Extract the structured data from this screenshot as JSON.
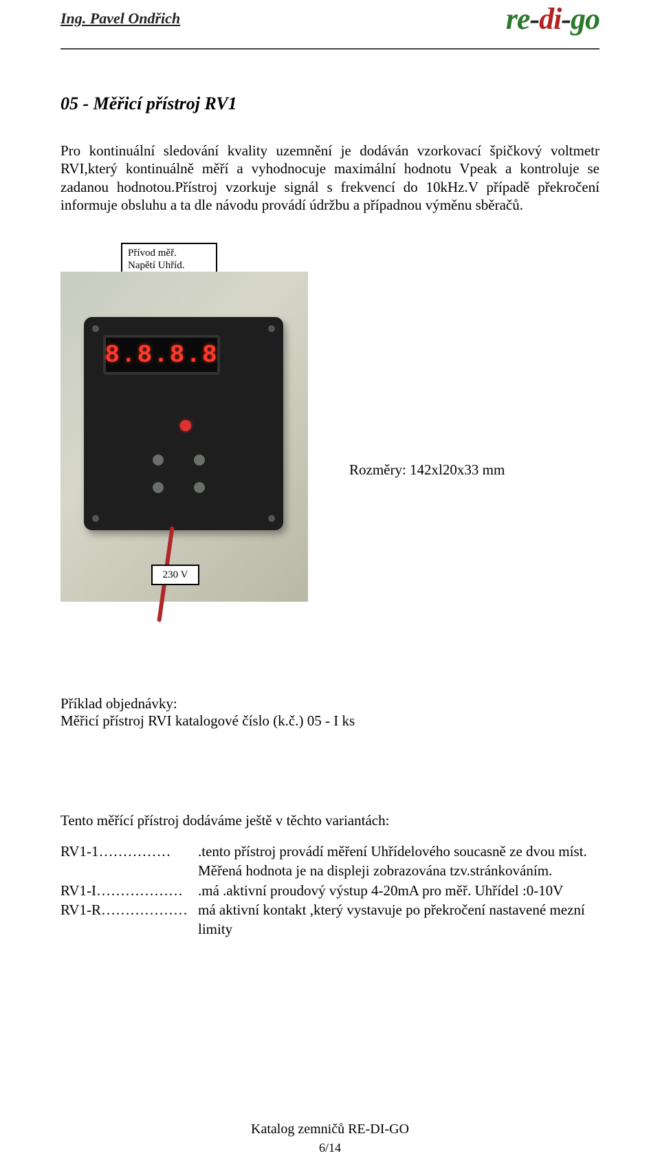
{
  "header": {
    "author": "Ing. Pavel Ondřich",
    "logo_re": "re",
    "logo_dash1": "-",
    "logo_di": "di",
    "logo_dash2": "-",
    "logo_go": "go"
  },
  "title": "05 - Měřicí přístroj RV1",
  "para": "Pro kontinuální sledování kvality uzemnění je dodáván vzorkovací špičkový voltmetr RVI,který kontinuálně měří a vyhodnocuje maximální hodnotu Vpeak a kontroluje se zadanou hodnotou.Přístroj vzorkuje signál s frekvencí do 10kHz.V případě překročení informuje obsluhu a ta dle návodu provádí údržbu a případnou výměnu sběračů.",
  "label_top_l1": "Přívod měř.",
  "label_top_l2": "Napětí Uhříd.",
  "label_bot": "230 V",
  "display_digits": "8.8.8.8",
  "dimensions": "Rozměry: 142xl20x33 mm",
  "order_title": "Příklad objednávky:",
  "order_line": "Měřicí přístroj RVI katalogové číslo (k.č.) 05 - I ks",
  "variants_heading": "Tento měřící přístroj dodáváme ještě v těchto variantách:",
  "variants": [
    {
      "code": "RV1-1……………",
      "desc": ".tento přístroj provádí měření Uhřídelového soucasně ze dvou míst.",
      "cont": "Měřená hodnota je na displeji zobrazována tzv.stránkováním."
    },
    {
      "code": "RV1-I………………",
      "desc": ".má .aktivní proudový výstup 4-20mA pro měř. Uhřídel :0-10V",
      "cont": ""
    },
    {
      "code": "RV1-R………………",
      "desc": "má aktivní kontakt ,který vystavuje po překročení nastavené mezní limity",
      "cont": ""
    }
  ],
  "footer": "Katalog zemničů RE-DI-GO",
  "pagenum": "6/14",
  "colors": {
    "green": "#2b7a2b",
    "red": "#b22222",
    "digit": "#ff3a2a"
  }
}
